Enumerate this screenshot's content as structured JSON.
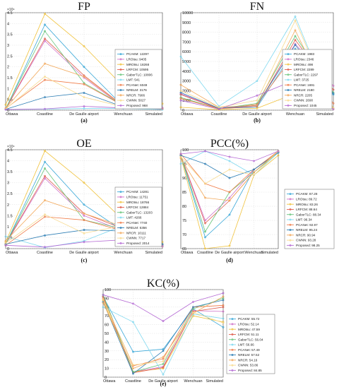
{
  "colors": {
    "PCAKM": "#3aa8d8",
    "LROtsu": "#cf70c8",
    "MROtsu": "#f0c23c",
    "LRFCM": "#e06050",
    "GaborTLC": "#66c47a",
    "LMT": "#7fd8ef",
    "PCANet": "#f07c48",
    "NRELM": "#2f7fb5",
    "NRCR": "#f2a85a",
    "CWNN": "#f7d98c",
    "Proposed": "#b56ad4"
  },
  "chart_data": [
    {
      "id": "fp",
      "type": "line",
      "title": "FP",
      "sublabel": "(a)",
      "categories": [
        "Ottawa",
        "Coastline",
        "De Gaulle airport",
        "Wenchuan",
        "Simulated"
      ],
      "ylim": [
        0,
        45000
      ],
      "yticks": [
        0,
        0.5,
        1,
        1.5,
        2,
        2.5,
        3,
        3.5,
        4,
        4.5
      ],
      "yexponent": "×10⁴",
      "grid": true,
      "legend_placement": "bottom-right",
      "series": [
        {
          "name": "PCAKM",
          "legend": "PCAKM: 12297",
          "values": [
            400,
            39500,
            20000,
            1800,
            700
          ]
        },
        {
          "name": "LROtsu",
          "legend": "LROtsu: 9405",
          "values": [
            500,
            32000,
            15000,
            1500,
            500
          ]
        },
        {
          "name": "MROtsu",
          "legend": "MROtsu: 18268",
          "values": [
            2500,
            44500,
            29500,
            11000,
            3000
          ]
        },
        {
          "name": "LRFCM",
          "legend": "LRFCM: 10595",
          "values": [
            600,
            33000,
            16000,
            2000,
            600
          ]
        },
        {
          "name": "GaborTLC",
          "legend": "GaborTLC: 10806",
          "values": [
            700,
            36500,
            12500,
            2200,
            700
          ]
        },
        {
          "name": "LMT",
          "legend": "LMT: 541",
          "values": [
            300,
            500,
            800,
            800,
            300
          ]
        },
        {
          "name": "PCANet",
          "legend": "PCANet: 6049",
          "values": [
            800,
            14000,
            12000,
            2100,
            800
          ]
        },
        {
          "name": "NRELM",
          "legend": "NRELM: 3176",
          "values": [
            400,
            6000,
            8000,
            1500,
            1000
          ]
        },
        {
          "name": "NRCR",
          "legend": "NRCR: 7906",
          "values": [
            900,
            21500,
            15500,
            1800,
            900
          ]
        },
        {
          "name": "CWNN",
          "legend": "CWNN: 5027",
          "values": [
            600,
            15500,
            6000,
            1500,
            1000
          ]
        },
        {
          "name": "Proposed",
          "legend": "Proposed: 968",
          "values": [
            300,
            600,
            1800,
            1000,
            1000
          ]
        }
      ]
    },
    {
      "id": "fn",
      "type": "line",
      "title": "FN",
      "sublabel": "(b)",
      "categories": [
        "Ottawa",
        "Coastline",
        "De Gaulle airport",
        "Wenchuan",
        "Simulated"
      ],
      "ylim": [
        0,
        10000
      ],
      "yticks": [
        0,
        1000,
        2000,
        3000,
        4000,
        5000,
        6000,
        7000,
        8000,
        9000,
        10000
      ],
      "grid": true,
      "legend_placement": "bottom-right",
      "series": [
        {
          "name": "PCAKM",
          "legend": "PCAKM: 1983",
          "values": [
            1600,
            200,
            300,
            6300,
            1600
          ]
        },
        {
          "name": "LROtsu",
          "legend": "LROtsu: 2346",
          "values": [
            1700,
            150,
            500,
            6800,
            2500
          ]
        },
        {
          "name": "MROtsu",
          "legend": "MROtsu: 498",
          "values": [
            300,
            50,
            200,
            1700,
            200
          ]
        },
        {
          "name": "LRFCM",
          "legend": "LRFCM: 2289",
          "values": [
            1600,
            150,
            400,
            7200,
            2100
          ]
        },
        {
          "name": "GaborTLC",
          "legend": "GaborTLC: 2297",
          "values": [
            1300,
            150,
            700,
            7600,
            1800
          ]
        },
        {
          "name": "LMT",
          "legend": "LMT: 3725",
          "values": [
            5500,
            400,
            3000,
            9600,
            100
          ]
        },
        {
          "name": "PCANet",
          "legend": "PCANet: 1691",
          "values": [
            1200,
            150,
            600,
            5800,
            700
          ]
        },
        {
          "name": "NRELM",
          "legend": "NRELM: 2180",
          "values": [
            1800,
            200,
            500,
            6700,
            1700
          ]
        },
        {
          "name": "NRCR",
          "legend": "NRCR: 2205",
          "values": [
            2600,
            300,
            500,
            8200,
            100
          ]
        },
        {
          "name": "CWNN",
          "legend": "CWNN: 2690",
          "values": [
            2000,
            300,
            1000,
            9200,
            200
          ]
        },
        {
          "name": "Proposed",
          "legend": "Proposed: 1045",
          "values": [
            1000,
            100,
            1500,
            3100,
            100
          ]
        }
      ]
    },
    {
      "id": "oe",
      "type": "line",
      "title": "OE",
      "sublabel": "(c)",
      "categories": [
        "Ottawa",
        "Coastline",
        "De Gaulle airport",
        "Wenchuan",
        "Simulated"
      ],
      "ylim": [
        0,
        45000
      ],
      "yticks": [
        0,
        0.5,
        1,
        1.5,
        2,
        2.5,
        3,
        3.5,
        4,
        4.5
      ],
      "yexponent": "×10⁴",
      "grid": true,
      "legend_placement": "bottom-right",
      "series": [
        {
          "name": "PCAKM",
          "legend": "PCAKM: 14281",
          "values": [
            2000,
            39500,
            20000,
            8000,
            1500
          ]
        },
        {
          "name": "LROtsu",
          "legend": "LROtsu: 11751",
          "values": [
            2000,
            32000,
            15000,
            8000,
            1500
          ]
        },
        {
          "name": "MROtsu",
          "legend": "MROtsu: 18766",
          "values": [
            3000,
            44500,
            30000,
            13000,
            3000
          ]
        },
        {
          "name": "LRFCM",
          "legend": "LRFCM: 12884",
          "values": [
            2200,
            33000,
            16000,
            9000,
            2000
          ]
        },
        {
          "name": "GaborTLC",
          "legend": "GaborTLC: 13203",
          "values": [
            2000,
            36500,
            13000,
            9000,
            2000
          ]
        },
        {
          "name": "LMT",
          "legend": "LMT: 4266",
          "values": [
            5500,
            500,
            3500,
            10500,
            1000
          ]
        },
        {
          "name": "PCANet",
          "legend": "PCANet: 7740",
          "values": [
            1500,
            14500,
            13000,
            8000,
            1000
          ]
        },
        {
          "name": "NRELM",
          "legend": "NRELM: 5356",
          "values": [
            2000,
            6000,
            8500,
            8000,
            2000
          ]
        },
        {
          "name": "NRCR",
          "legend": "NRCR: 10111",
          "values": [
            3500,
            22000,
            16000,
            10000,
            1000
          ]
        },
        {
          "name": "CWNN",
          "legend": "CWNN: 7717",
          "values": [
            2500,
            15500,
            7000,
            10500,
            1000
          ]
        },
        {
          "name": "Proposed",
          "legend": "Proposed: 2014",
          "values": [
            1500,
            700,
            3000,
            4000,
            1000
          ]
        }
      ]
    },
    {
      "id": "pcc",
      "type": "line",
      "title": "PCC(%)",
      "sublabel": "(d)",
      "categories": [
        "Ottawa",
        "Coastline",
        "De Gaulle airport",
        "Wenchuan",
        "Simulated"
      ],
      "ylim": [
        65,
        100
      ],
      "yticks": [
        65,
        70,
        75,
        80,
        85,
        90,
        95,
        100
      ],
      "grid": true,
      "legend_placement": "bottom-right",
      "series": [
        {
          "name": "PCAKM",
          "legend": "PCAKM: 87.28",
          "values": [
            98,
            69,
            77,
            93,
            99
          ]
        },
        {
          "name": "LROtsu",
          "legend": "LROtsu: 89.72",
          "values": [
            98,
            75,
            83,
            93,
            99
          ]
        },
        {
          "name": "MROtsu",
          "legend": "MROtsu: 83.26",
          "values": [
            97.5,
            60,
            66,
            91,
            98
          ]
        },
        {
          "name": "LRFCM",
          "legend": "LRFCM: 88.64",
          "values": [
            98,
            74,
            82,
            92,
            99
          ]
        },
        {
          "name": "GaborTLC",
          "legend": "GaborTLC: 88.34",
          "values": [
            98,
            71,
            85,
            92,
            99
          ]
        },
        {
          "name": "LMT",
          "legend": "LMT: 96.34",
          "values": [
            95,
            99.5,
            96,
            91,
            99
          ]
        },
        {
          "name": "PCANet",
          "legend": "PCANet: 92.97",
          "values": [
            98.5,
            88,
            85,
            93,
            99.5
          ]
        },
        {
          "name": "NRELM",
          "legend": "NRELM: 95.24",
          "values": [
            98,
            95,
            90,
            93,
            99
          ]
        },
        {
          "name": "NRCR",
          "legend": "NRCR: 90.94",
          "values": [
            97,
            83,
            82,
            92,
            99.5
          ]
        },
        {
          "name": "CWNN",
          "legend": "CWNN: 93.28",
          "values": [
            97.5,
            88,
            93,
            91,
            99.5
          ]
        },
        {
          "name": "Proposed",
          "legend": "Proposed: 98.25",
          "values": [
            98.5,
            99.5,
            97.5,
            96,
            99.5
          ]
        }
      ]
    },
    {
      "id": "kc",
      "type": "line",
      "title": "KC(%)",
      "sublabel": "(e)",
      "categories": [
        "Ottawa",
        "Coastline",
        "De Gaulle airport",
        "Wenchuan",
        "Simulated"
      ],
      "ylim": [
        0,
        100
      ],
      "yticks": [
        0,
        10,
        20,
        30,
        40,
        50,
        60,
        70,
        80,
        90,
        100
      ],
      "grid": true,
      "legend_placement": "right",
      "series": [
        {
          "name": "PCAKM",
          "legend": "PCAKM: 55.72",
          "values": [
            92,
            29,
            32,
            78,
            57
          ]
        },
        {
          "name": "LROtsu",
          "legend": "LROtsu: 52.14",
          "values": [
            92,
            6,
            12,
            76,
            75
          ]
        },
        {
          "name": "MROtsu",
          "legend": "MROtsu: 47.59",
          "values": [
            88,
            6,
            10,
            70,
            63
          ]
        },
        {
          "name": "LRFCM",
          "legend": "LRFCM: 51.11",
          "values": [
            92,
            5,
            11,
            75,
            80
          ]
        },
        {
          "name": "GaborTLC",
          "legend": "GaborTLC: 56.04",
          "values": [
            94,
            6,
            15,
            78,
            90
          ]
        },
        {
          "name": "LMT",
          "legend": "LMT: 56.66",
          "values": [
            80,
            63,
            3,
            72,
            67
          ]
        },
        {
          "name": "PCANet",
          "legend": "PCANet: 57.49",
          "values": [
            90,
            13,
            21,
            80,
            82
          ]
        },
        {
          "name": "NRELM",
          "legend": "NRELM: 57.52",
          "values": [
            86,
            4,
            30,
            80,
            88
          ]
        },
        {
          "name": "NRCR",
          "legend": "NRCR: 54.16",
          "values": [
            85,
            10,
            23,
            73,
            92
          ]
        },
        {
          "name": "CWNN",
          "legend": "CWNN: 53.86",
          "values": [
            89,
            14,
            18,
            74,
            62
          ]
        },
        {
          "name": "Proposed",
          "legend": "Proposed: 84.85",
          "values": [
            94,
            84,
            64,
            86,
            96
          ]
        }
      ]
    }
  ]
}
